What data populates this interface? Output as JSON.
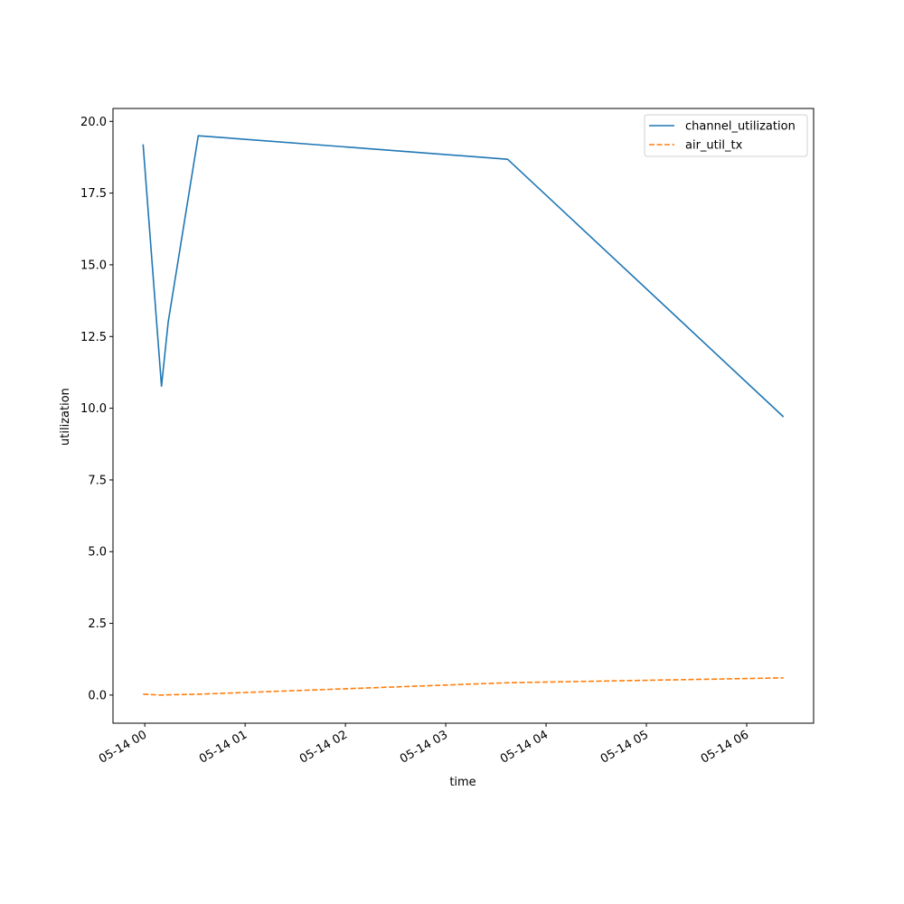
{
  "chart_data": {
    "type": "line",
    "title": "",
    "xlabel": "time",
    "ylabel": "utilization",
    "x_tick_labels": [
      "05-14 00",
      "05-14 01",
      "05-14 02",
      "05-14 03",
      "05-14 04",
      "05-14 05",
      "05-14 06"
    ],
    "x_ticks": [
      "05-14 00:00",
      "05-14 01:00",
      "05-14 02:00",
      "05-14 03:00",
      "05-14 04:00",
      "05-14 05:00",
      "05-14 06:00"
    ],
    "xlim": [
      "05-13 23:41",
      "05-14 06:40"
    ],
    "ylim": [
      -0.98,
      20.45
    ],
    "y_ticks": [
      0.0,
      2.5,
      5.0,
      7.5,
      10.0,
      12.5,
      15.0,
      17.5,
      20.0
    ],
    "y_tick_labels": [
      "0.0",
      "2.5",
      "5.0",
      "7.5",
      "10.0",
      "12.5",
      "15.0",
      "17.5",
      "20.0"
    ],
    "grid": false,
    "legend": "top-right",
    "series": [
      {
        "name": "channel_utilization",
        "color": "#1f77b4",
        "style": "solid",
        "points": [
          {
            "x": "05-13 23:59",
            "y": 19.2
          },
          {
            "x": "05-14 00:10",
            "y": 10.77
          },
          {
            "x": "05-14 00:14",
            "y": 13.0
          },
          {
            "x": "05-14 00:32",
            "y": 19.5
          },
          {
            "x": "05-14 03:37",
            "y": 18.68
          },
          {
            "x": "05-14 06:22",
            "y": 9.7
          }
        ]
      },
      {
        "name": "air_util_tx",
        "color": "#ff7f0e",
        "style": "dashed",
        "points": [
          {
            "x": "05-13 23:59",
            "y": 0.03
          },
          {
            "x": "05-14 00:10",
            "y": 0.0
          },
          {
            "x": "05-14 00:14",
            "y": 0.01
          },
          {
            "x": "05-14 00:32",
            "y": 0.03
          },
          {
            "x": "05-14 03:37",
            "y": 0.43
          },
          {
            "x": "05-14 06:22",
            "y": 0.6
          }
        ]
      }
    ]
  }
}
